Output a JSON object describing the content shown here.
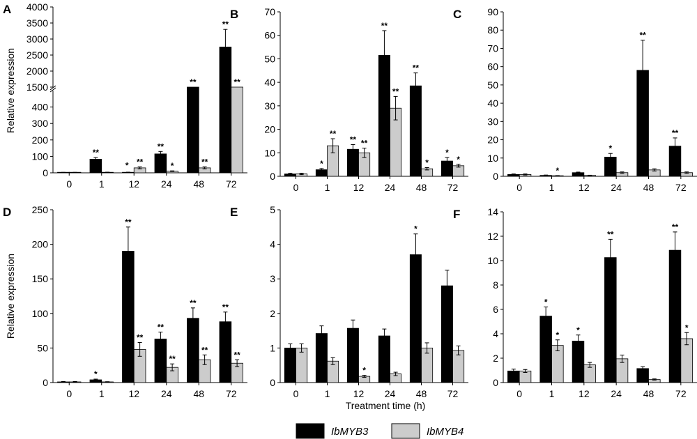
{
  "legend": {
    "series": [
      {
        "name": "IbMYB3",
        "color": "#000000"
      },
      {
        "name": "IbMYB4",
        "color": "#cccccc"
      }
    ]
  },
  "labels": {
    "y_axis": "Relative  expression",
    "x_axis": "Treatment time (h)"
  },
  "chart_data": [
    {
      "panel": "A",
      "type": "bar",
      "categories": [
        "0",
        "1",
        "12",
        "24",
        "48",
        "72"
      ],
      "series": [
        {
          "name": "IbMYB3",
          "values": [
            2,
            83,
            3,
            115,
            1500,
            2750
          ],
          "errors": [
            1,
            10,
            1,
            15,
            0,
            550
          ],
          "significance": [
            "",
            "**",
            "",
            "**",
            "**",
            "**"
          ]
        },
        {
          "name": "IbMYB4",
          "values": [
            2,
            3,
            30,
            10,
            30,
            1500
          ],
          "errors": [
            1,
            1,
            6,
            2,
            6,
            0
          ],
          "significance": [
            "",
            "",
            "**",
            "*",
            "**",
            "**"
          ]
        }
      ],
      "extra_marks": [
        {
          "text": "*",
          "category": "12",
          "y": 20
        }
      ],
      "axis_break": true,
      "yticks": [
        "0",
        "100",
        "200",
        "300",
        "400",
        "1500",
        "2000",
        "2500",
        "3000",
        "3500",
        "4000"
      ]
    },
    {
      "panel": "B",
      "type": "bar",
      "categories": [
        "0",
        "1",
        "12",
        "24",
        "48",
        "72"
      ],
      "series": [
        {
          "name": "IbMYB3",
          "values": [
            1,
            2.8,
            11.5,
            51.5,
            38.5,
            6.5
          ],
          "errors": [
            0.3,
            0.5,
            2,
            10.5,
            5.5,
            1.5
          ],
          "significance": [
            "",
            "*",
            "**",
            "**",
            "**",
            "*"
          ]
        },
        {
          "name": "IbMYB4",
          "values": [
            1,
            13,
            10,
            29,
            3.2,
            4.5
          ],
          "errors": [
            0.3,
            3,
            2,
            5,
            0.5,
            0.6
          ],
          "significance": [
            "",
            "**",
            "**",
            "**",
            "*",
            "*"
          ]
        }
      ],
      "ylim": [
        0,
        70
      ],
      "yticks": [
        "0",
        "10",
        "20",
        "30",
        "40",
        "50",
        "60",
        "70"
      ]
    },
    {
      "panel": "C",
      "type": "bar",
      "categories": [
        "0",
        "1",
        "12",
        "24",
        "48",
        "72"
      ],
      "series": [
        {
          "name": "IbMYB3",
          "values": [
            1,
            0.5,
            2,
            10.5,
            58,
            16.5
          ],
          "errors": [
            0.3,
            0.2,
            0.3,
            2,
            16.5,
            4.5
          ],
          "significance": [
            "",
            "",
            "",
            "*",
            "**",
            "**"
          ]
        },
        {
          "name": "IbMYB4",
          "values": [
            1,
            0.3,
            0.5,
            2,
            3.5,
            2
          ],
          "errors": [
            0.3,
            0.1,
            0.1,
            0.4,
            0.6,
            0.4
          ],
          "significance": [
            "",
            "*",
            "",
            "",
            "",
            ""
          ]
        }
      ],
      "ylim": [
        0,
        90
      ],
      "yticks": [
        "0",
        "10",
        "20",
        "30",
        "40",
        "50",
        "60",
        "70",
        "80",
        "90"
      ]
    },
    {
      "panel": "D",
      "type": "bar",
      "categories": [
        "0",
        "1",
        "12",
        "24",
        "48",
        "72"
      ],
      "series": [
        {
          "name": "IbMYB3",
          "values": [
            1,
            4,
            190,
            63,
            93,
            88
          ],
          "errors": [
            0.5,
            1,
            35,
            10,
            15,
            14
          ],
          "significance": [
            "",
            "*",
            "**",
            "**",
            "**",
            "**"
          ]
        },
        {
          "name": "IbMYB4",
          "values": [
            1,
            1,
            48,
            22,
            33,
            28
          ],
          "errors": [
            0.5,
            0.3,
            10,
            5,
            7,
            5
          ],
          "significance": [
            "",
            "",
            "**",
            "**",
            "**",
            "**"
          ]
        }
      ],
      "ylim": [
        0,
        250
      ],
      "yticks": [
        "0",
        "50",
        "100",
        "150",
        "200",
        "250"
      ]
    },
    {
      "panel": "E",
      "type": "bar",
      "categories": [
        "0",
        "1",
        "12",
        "24",
        "48",
        "72"
      ],
      "series": [
        {
          "name": "IbMYB3",
          "values": [
            1,
            1.42,
            1.57,
            1.35,
            3.7,
            2.8
          ],
          "errors": [
            0.12,
            0.22,
            0.24,
            0.2,
            0.6,
            0.45
          ],
          "significance": [
            "",
            "",
            "",
            "",
            "*",
            ""
          ]
        },
        {
          "name": "IbMYB4",
          "values": [
            1,
            0.62,
            0.18,
            0.25,
            1,
            0.93
          ],
          "errors": [
            0.12,
            0.1,
            0.03,
            0.05,
            0.15,
            0.13
          ],
          "significance": [
            "",
            "",
            "*",
            "",
            "",
            ""
          ]
        }
      ],
      "ylim": [
        0,
        5
      ],
      "yticks": [
        "0",
        "1",
        "2",
        "3",
        "4",
        "5"
      ]
    },
    {
      "panel": "F",
      "type": "bar",
      "categories": [
        "0",
        "1",
        "12",
        "24",
        "48",
        "72"
      ],
      "series": [
        {
          "name": "IbMYB3",
          "values": [
            0.95,
            5.45,
            3.4,
            10.25,
            1.15,
            10.85
          ],
          "errors": [
            0.15,
            0.75,
            0.5,
            1.5,
            0.15,
            1.5
          ],
          "significance": [
            "",
            "*",
            "*",
            "**",
            "",
            "**"
          ]
        },
        {
          "name": "IbMYB4",
          "values": [
            0.95,
            3.05,
            1.45,
            1.95,
            0.25,
            3.6
          ],
          "errors": [
            0.12,
            0.45,
            0.2,
            0.3,
            0.05,
            0.5
          ],
          "significance": [
            "",
            "*",
            "",
            "",
            "",
            "*"
          ]
        }
      ],
      "ylim": [
        0,
        14
      ],
      "yticks": [
        "0",
        "2",
        "4",
        "6",
        "8",
        "10",
        "12",
        "14"
      ]
    }
  ]
}
